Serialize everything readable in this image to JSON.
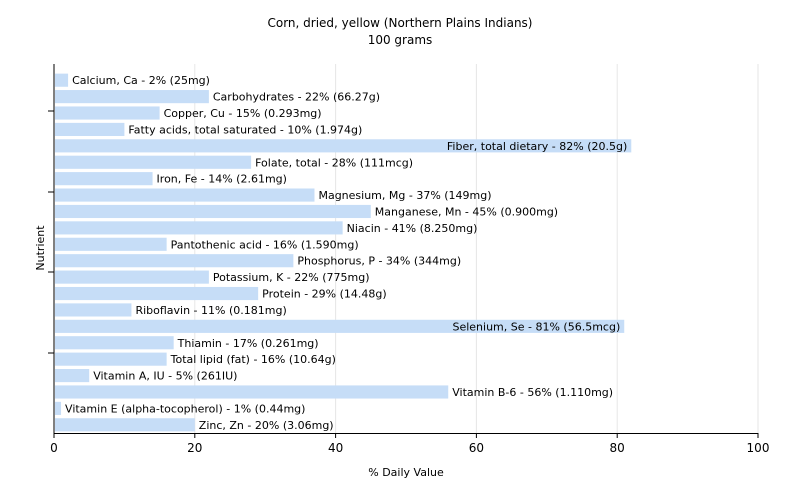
{
  "chart_data": {
    "type": "bar",
    "orientation": "horizontal",
    "title": "Corn, dried, yellow (Northern Plains Indians)",
    "subtitle": "100 grams",
    "xlabel": "% Daily Value",
    "ylabel": "Nutrient",
    "xlim": [
      0,
      100
    ],
    "xticks": [
      "0",
      "20",
      "40",
      "60",
      "80",
      "100"
    ],
    "bar_color": "#c6ddf7",
    "grid": true,
    "categories": [
      "Calcium, Ca - 2% (25mg)",
      "Carbohydrates - 22% (66.27g)",
      "Copper, Cu - 15% (0.293mg)",
      "Fatty acids, total saturated - 10% (1.974g)",
      "Fiber, total dietary - 82% (20.5g)",
      "Folate, total - 28% (111mcg)",
      "Iron, Fe - 14% (2.61mg)",
      "Magnesium, Mg - 37% (149mg)",
      "Manganese, Mn - 45% (0.900mg)",
      "Niacin - 41% (8.250mg)",
      "Pantothenic acid - 16% (1.590mg)",
      "Phosphorus, P - 34% (344mg)",
      "Potassium, K - 22% (775mg)",
      "Protein - 29% (14.48g)",
      "Riboflavin - 11% (0.181mg)",
      "Selenium, Se - 81% (56.5mcg)",
      "Thiamin - 17% (0.261mg)",
      "Total lipid (fat) - 16% (10.64g)",
      "Vitamin A, IU - 5% (261IU)",
      "Vitamin B-6 - 56% (1.110mg)",
      "Vitamin E (alpha-tocopherol) - 1% (0.44mg)",
      "Zinc, Zn - 20% (3.06mg)"
    ],
    "values": [
      2,
      22,
      15,
      10,
      82,
      28,
      14,
      37,
      45,
      41,
      16,
      34,
      22,
      29,
      11,
      81,
      17,
      16,
      5,
      56,
      1,
      20
    ]
  }
}
